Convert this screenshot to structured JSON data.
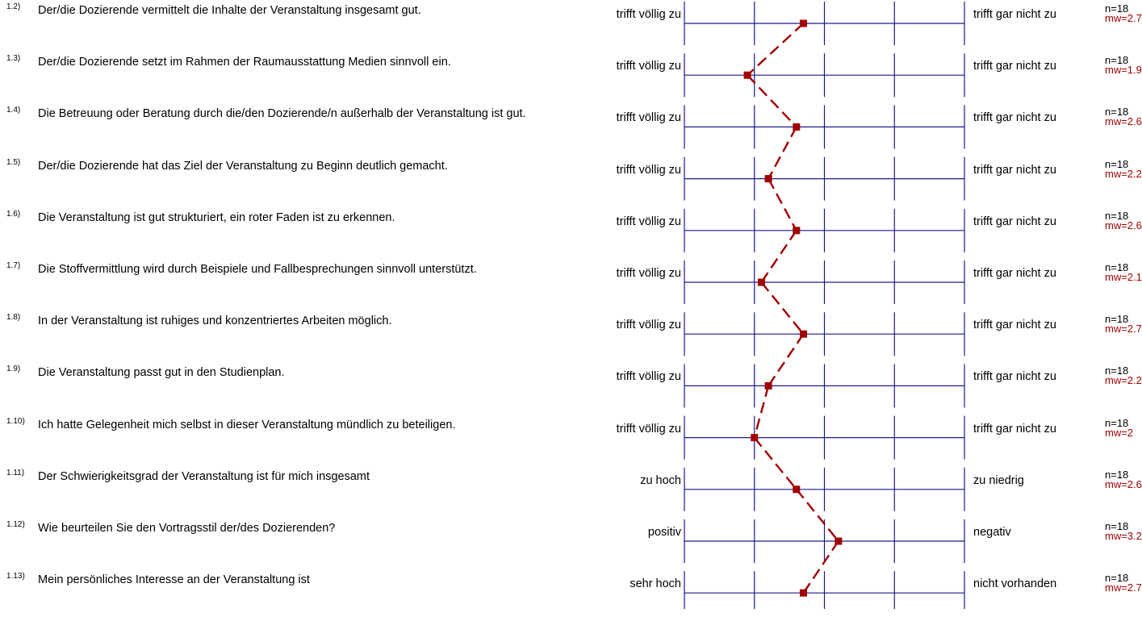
{
  "chart_data": {
    "type": "line",
    "scale": [
      1,
      5
    ],
    "colors": {
      "axis": "#1a1a8c",
      "profile": "#a00000",
      "mean_text": "#a00000"
    },
    "items": [
      {
        "num": "1.2)",
        "question": "Der/die Dozierende vermittelt die Inhalte der Veranstaltung insgesamt gut.",
        "left": "trifft völlig zu",
        "right": "trifft gar nicht zu",
        "n": "n=18",
        "mw": "mw=2.7",
        "value": 2.7
      },
      {
        "num": "1.3)",
        "question": "Der/die Dozierende setzt im Rahmen der Raumausstattung Medien sinnvoll ein.",
        "left": "trifft völlig zu",
        "right": "trifft gar nicht zu",
        "n": "n=18",
        "mw": "mw=1.9",
        "value": 1.9
      },
      {
        "num": "1.4)",
        "question": "Die Betreuung oder Beratung durch die/den Dozierende/n außerhalb der Veranstaltung ist gut.",
        "left": "trifft völlig zu",
        "right": "trifft gar nicht zu",
        "n": "n=18",
        "mw": "mw=2.6",
        "value": 2.6
      },
      {
        "num": "1.5)",
        "question": "Der/die Dozierende hat das Ziel der Veranstaltung zu Beginn deutlich gemacht.",
        "left": "trifft völlig zu",
        "right": "trifft gar nicht zu",
        "n": "n=18",
        "mw": "mw=2.2",
        "value": 2.2
      },
      {
        "num": "1.6)",
        "question": "Die Veranstaltung ist gut strukturiert, ein roter Faden ist zu erkennen.",
        "left": "trifft völlig zu",
        "right": "trifft gar nicht zu",
        "n": "n=18",
        "mw": "mw=2.6",
        "value": 2.6
      },
      {
        "num": "1.7)",
        "question": "Die Stoffvermittlung wird durch Beispiele und Fallbesprechungen sinnvoll unterstützt.",
        "left": "trifft völlig zu",
        "right": "trifft gar nicht zu",
        "n": "n=18",
        "mw": "mw=2.1",
        "value": 2.1
      },
      {
        "num": "1.8)",
        "question": "In der Veranstaltung ist ruhiges und konzentriertes Arbeiten möglich.",
        "left": "trifft völlig zu",
        "right": "trifft gar nicht zu",
        "n": "n=18",
        "mw": "mw=2.7",
        "value": 2.7
      },
      {
        "num": "1.9)",
        "question": "Die Veranstaltung passt gut in den Studienplan.",
        "left": "trifft völlig zu",
        "right": "trifft gar nicht zu",
        "n": "n=18",
        "mw": "mw=2.2",
        "value": 2.2
      },
      {
        "num": "1.10)",
        "question": "Ich hatte Gelegenheit mich selbst in dieser Veranstaltung mündlich zu beteiligen.",
        "left": "trifft völlig zu",
        "right": "trifft gar nicht zu",
        "n": "n=18",
        "mw": "mw=2",
        "value": 2.0
      },
      {
        "num": "1.11)",
        "question": "Der Schwierigkeitsgrad der Veranstaltung ist für mich insgesamt",
        "left": "zu hoch",
        "right": "zu niedrig",
        "n": "n=18",
        "mw": "mw=2.6",
        "value": 2.6
      },
      {
        "num": "1.12)",
        "question": "Wie beurteilen Sie den Vortragsstil der/des Dozierenden?",
        "left": "positiv",
        "right": "negativ",
        "n": "n=18",
        "mw": "mw=3.2",
        "value": 3.2
      },
      {
        "num": "1.13)",
        "question": "Mein persönliches Interesse an der Veranstaltung ist",
        "left": "sehr hoch",
        "right": "nicht vorhanden",
        "n": "n=18",
        "mw": "mw=2.7",
        "value": 2.7
      }
    ]
  }
}
